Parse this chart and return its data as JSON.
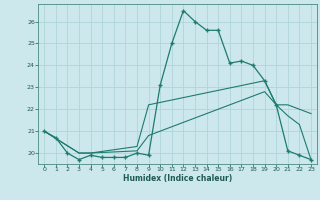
{
  "xlabel": "Humidex (Indice chaleur)",
  "bg_color": "#cce8ec",
  "line_color": "#1e7b6e",
  "grid_color": "#b0d4d8",
  "xlim": [
    -0.5,
    23.5
  ],
  "ylim": [
    19.5,
    26.8
  ],
  "yticks": [
    20,
    21,
    22,
    23,
    24,
    25,
    26
  ],
  "xticks": [
    0,
    1,
    2,
    3,
    4,
    5,
    6,
    7,
    8,
    9,
    10,
    11,
    12,
    13,
    14,
    15,
    16,
    17,
    18,
    19,
    20,
    21,
    22,
    23
  ],
  "series1_x": [
    0,
    1,
    2,
    3,
    4,
    5,
    6,
    7,
    8,
    9,
    10,
    11,
    12,
    13,
    14,
    15,
    16,
    17,
    18,
    19,
    20,
    21,
    22,
    23
  ],
  "series1_y": [
    21.0,
    20.7,
    20.0,
    19.7,
    19.9,
    19.8,
    19.8,
    19.8,
    20.0,
    19.9,
    23.1,
    25.0,
    26.5,
    26.0,
    25.6,
    25.6,
    24.1,
    24.2,
    24.0,
    23.3,
    22.2,
    20.1,
    19.9,
    19.7
  ],
  "series2_x": [
    0,
    3,
    4,
    8,
    9,
    19,
    20,
    21,
    22,
    23
  ],
  "series2_y": [
    21.0,
    20.0,
    20.0,
    20.3,
    22.2,
    23.3,
    22.2,
    22.2,
    22.0,
    21.8
  ],
  "series3_x": [
    0,
    3,
    4,
    8,
    9,
    19,
    20,
    21,
    22,
    23
  ],
  "series3_y": [
    21.0,
    20.0,
    20.0,
    20.1,
    20.8,
    22.8,
    22.2,
    21.7,
    21.3,
    19.7
  ]
}
